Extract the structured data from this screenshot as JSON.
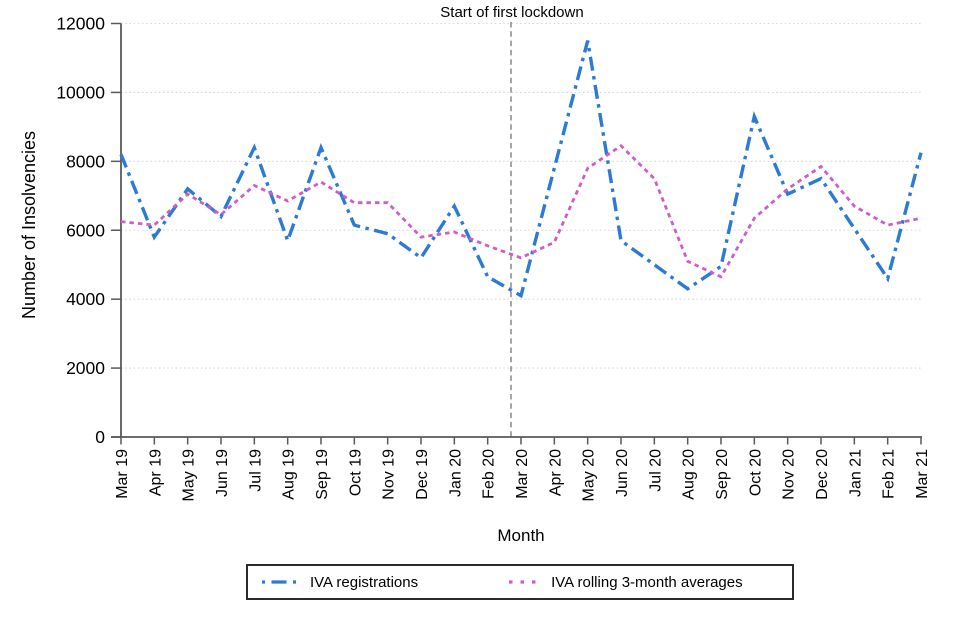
{
  "chart_data": {
    "type": "line",
    "title": "",
    "xlabel": "Month",
    "ylabel": "Number of Insolvencies",
    "ylim": [
      0,
      12000
    ],
    "yticks": [
      0,
      2000,
      4000,
      6000,
      8000,
      10000,
      12000
    ],
    "grid": "horizontal-dotted",
    "legend_position": "bottom-center",
    "categories": [
      "Mar 19",
      "Apr 19",
      "May 19",
      "Jun 19",
      "Jul 19",
      "Aug 19",
      "Sep 19",
      "Oct 19",
      "Nov 19",
      "Dec 19",
      "Jan 20",
      "Feb 20",
      "Mar 20",
      "Apr 20",
      "May 20",
      "Jun 20",
      "Jul 20",
      "Aug 20",
      "Sep 20",
      "Oct 20",
      "Nov 20",
      "Dec 20",
      "Jan 21",
      "Feb 21",
      "Mar 21"
    ],
    "series": [
      {
        "name": "IVA registrations",
        "style": "dash-dot",
        "color": "#2b7bd6",
        "values": [
          8200,
          5800,
          7200,
          6400,
          8400,
          5700,
          8400,
          6150,
          5900,
          5200,
          6700,
          4650,
          4100,
          7800,
          11500,
          5700,
          5000,
          4300,
          4950,
          9300,
          7050,
          7500,
          6050,
          4600,
          8250
        ]
      },
      {
        "name": "IVA rolling 3-month averages",
        "style": "dotted",
        "color": "#cc5fc6",
        "values": [
          6250,
          6150,
          7050,
          6450,
          7300,
          6850,
          7400,
          6800,
          6800,
          5800,
          5950,
          5550,
          5200,
          5650,
          7800,
          8450,
          7500,
          5100,
          4650,
          6350,
          7200,
          7850,
          6700,
          6150,
          6350
        ]
      }
    ],
    "annotation": {
      "label": "Start of first lockdown",
      "x_index": 11.7,
      "line_color": "#7f7f7f"
    },
    "colors": {
      "axis": "#595959",
      "gridline": "#d8d8d8",
      "tick_label": "#000000"
    }
  }
}
